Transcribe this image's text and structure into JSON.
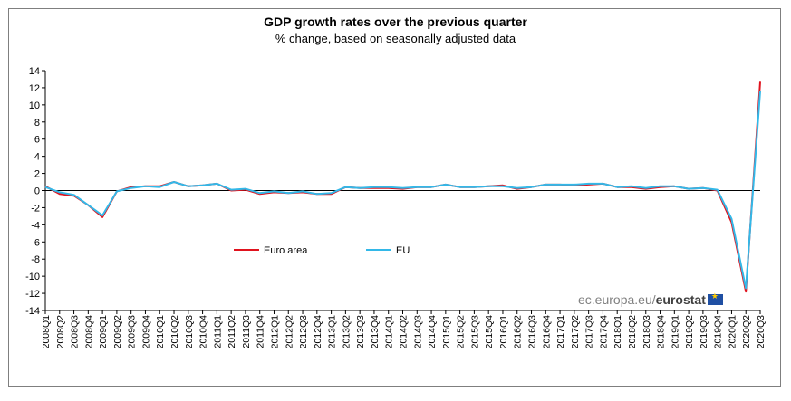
{
  "chart_data": {
    "type": "line",
    "title": "GDP growth rates over the previous quarter",
    "subtitle": "% change, based on seasonally adjusted data",
    "xlabel": "",
    "ylabel": "",
    "ylim": [
      -14,
      14
    ],
    "yticks": [
      -14,
      -12,
      -10,
      -8,
      -6,
      -4,
      -2,
      0,
      2,
      4,
      6,
      8,
      10,
      12,
      14
    ],
    "categories": [
      "2008Q1",
      "2008Q2",
      "2008Q3",
      "2008Q4",
      "2009Q1",
      "2009Q2",
      "2009Q3",
      "2009Q4",
      "2010Q1",
      "2010Q2",
      "2010Q3",
      "2010Q4",
      "2011Q1",
      "2011Q2",
      "2011Q3",
      "2011Q4",
      "2012Q1",
      "2012Q2",
      "2012Q3",
      "2012Q4",
      "2013Q1",
      "2013Q2",
      "2013Q3",
      "2013Q4",
      "2014Q1",
      "2014Q2",
      "2014Q3",
      "2014Q4",
      "2015Q1",
      "2015Q2",
      "2015Q3",
      "2015Q4",
      "2016Q1",
      "2016Q2",
      "2016Q3",
      "2016Q4",
      "2017Q1",
      "2017Q2",
      "2017Q3",
      "2017Q4",
      "2018Q1",
      "2018Q2",
      "2018Q3",
      "2018Q4",
      "2019Q1",
      "2019Q2",
      "2019Q3",
      "2019Q4",
      "2020Q1",
      "2020Q2",
      "2020Q3"
    ],
    "series": [
      {
        "name": "Euro area",
        "color": "#e0131e",
        "values": [
          0.5,
          -0.4,
          -0.6,
          -1.7,
          -3.1,
          -0.1,
          0.4,
          0.5,
          0.5,
          1.0,
          0.5,
          0.6,
          0.8,
          0.0,
          0.1,
          -0.4,
          -0.2,
          -0.3,
          -0.2,
          -0.4,
          -0.4,
          0.4,
          0.3,
          0.3,
          0.3,
          0.2,
          0.4,
          0.4,
          0.7,
          0.4,
          0.4,
          0.5,
          0.6,
          0.2,
          0.4,
          0.7,
          0.7,
          0.6,
          0.7,
          0.8,
          0.4,
          0.4,
          0.2,
          0.4,
          0.5,
          0.2,
          0.3,
          0.0,
          -3.7,
          -11.8,
          12.7
        ]
      },
      {
        "name": "EU",
        "color": "#33b8e8",
        "values": [
          0.4,
          -0.2,
          -0.5,
          -1.7,
          -2.9,
          -0.1,
          0.3,
          0.5,
          0.4,
          1.0,
          0.5,
          0.6,
          0.8,
          0.1,
          0.2,
          -0.3,
          -0.1,
          -0.3,
          -0.1,
          -0.4,
          -0.3,
          0.4,
          0.3,
          0.4,
          0.4,
          0.3,
          0.4,
          0.4,
          0.7,
          0.4,
          0.4,
          0.5,
          0.5,
          0.3,
          0.4,
          0.7,
          0.7,
          0.7,
          0.8,
          0.8,
          0.4,
          0.5,
          0.3,
          0.5,
          0.5,
          0.2,
          0.3,
          0.1,
          -3.3,
          -11.4,
          11.6
        ]
      }
    ],
    "legend": [
      "Euro area",
      "EU"
    ],
    "grid": false
  },
  "watermark": {
    "prefix": "ec.europa.eu/",
    "brand": "eurostat"
  }
}
